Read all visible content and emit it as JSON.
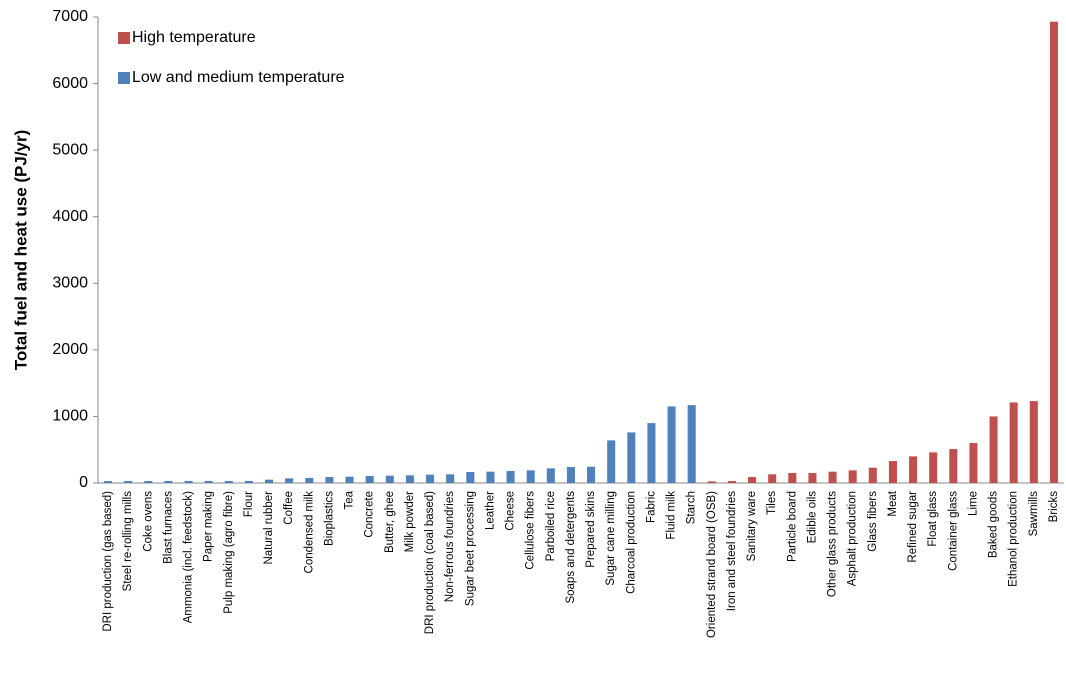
{
  "chart_data": {
    "type": "bar",
    "ylabel": "Total fuel and heat use (PJ/yr)",
    "categories": [
      "DRI production (gas based)",
      "Steel re-rolling mills",
      "Coke ovens",
      "Blast furnaces",
      "Ammonia (incl. feedstock)",
      "Paper making",
      "Pulp making (agro fibre)",
      "Flour",
      "Natural rubber",
      "Coffee",
      "Condensed milk",
      "Bioplastics",
      "Tea",
      "Concrete",
      "Butter, ghee",
      "Milk powder",
      "DRI production (coal based)",
      "Non-ferrous foundries",
      "Sugar beet processing",
      "Leather",
      "Cheese",
      "Cellulose fibers",
      "Parboiled rice",
      "Soaps and detergents",
      "Prepared skins",
      "Sugar cane milling",
      "Charcoal production",
      "Fabric",
      "Fluid milk",
      "Starch",
      "Oriented strand board (OSB)",
      "Iron and steel foundries",
      "Sanitary ware",
      "Tiles",
      "Particle board",
      "Edible oils",
      "Other glass products",
      "Asphalt production",
      "Glass fibers",
      "Meat",
      "Refined sugar",
      "Float glass",
      "Container glass",
      "Lime",
      "Baked goods",
      "Ethanol production",
      "Sawmills",
      "Bricks"
    ],
    "series": [
      {
        "name": "High temperature",
        "color": "#c0504d",
        "values": [
          null,
          null,
          null,
          null,
          null,
          null,
          null,
          null,
          null,
          null,
          null,
          null,
          null,
          null,
          null,
          null,
          null,
          null,
          null,
          null,
          null,
          null,
          null,
          null,
          null,
          null,
          null,
          null,
          null,
          null,
          25,
          30,
          90,
          130,
          150,
          150,
          170,
          190,
          230,
          330,
          400,
          460,
          510,
          600,
          1000,
          1210,
          1230,
          6930
        ]
      },
      {
        "name": "Low and medium temperature",
        "color": "#4f81bd",
        "values": [
          30,
          30,
          30,
          30,
          30,
          30,
          30,
          30,
          50,
          70,
          75,
          90,
          95,
          105,
          110,
          115,
          125,
          130,
          165,
          170,
          180,
          190,
          220,
          240,
          245,
          640,
          760,
          900,
          1150,
          1170,
          null,
          null,
          null,
          null,
          null,
          null,
          null,
          null,
          null,
          null,
          null,
          null,
          null,
          null,
          null,
          null,
          null,
          null
        ]
      }
    ],
    "ylim": [
      0,
      7000
    ],
    "yticks": [
      0,
      1000,
      2000,
      3000,
      4000,
      5000,
      6000,
      7000
    ],
    "grid": false,
    "legend": "upper left"
  }
}
